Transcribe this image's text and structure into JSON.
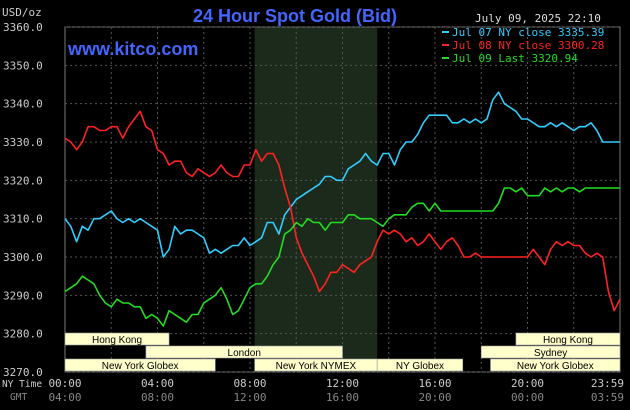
{
  "chart_data": {
    "type": "line",
    "title": "24 Hour Spot Gold (Bid)",
    "ylabel": "USD/oz",
    "ylim": [
      3270,
      3360
    ],
    "y_ticks": [
      "3270.0",
      "3280.0",
      "3290.0",
      "3300.0",
      "3310.0",
      "3320.0",
      "3330.0",
      "3340.0",
      "3350.0",
      "3360.0"
    ],
    "x_range_hours": [
      0,
      24
    ],
    "x_ticks_ny": [
      "00:00",
      "04:00",
      "08:00",
      "12:00",
      "16:00",
      "20:00",
      "23:59"
    ],
    "x_ticks_gmt": [
      "04:00",
      "08:00",
      "12:00",
      "16:00",
      "20:00",
      "00:00",
      "03:59"
    ],
    "x_row_labels": {
      "ny": "NY Time",
      "gmt": "GMT"
    },
    "grid": true,
    "legend_position": "top-right",
    "date_text": "July 09, 2025 22:10",
    "watermark": "www.kitco.com",
    "series": [
      {
        "name": "Jul 07 NY close 3335.39",
        "color": "#33ccff",
        "x": [
          0,
          0.25,
          0.5,
          0.75,
          1,
          1.25,
          1.5,
          1.75,
          2,
          2.25,
          2.5,
          2.75,
          3,
          3.25,
          3.5,
          3.75,
          4,
          4.25,
          4.5,
          4.75,
          5,
          5.25,
          5.5,
          5.75,
          6,
          6.25,
          6.5,
          6.75,
          7,
          7.25,
          7.5,
          7.75,
          8,
          8.25,
          8.5,
          8.75,
          9,
          9.25,
          9.5,
          9.75,
          10,
          10.25,
          10.5,
          10.75,
          11,
          11.25,
          11.5,
          11.75,
          12,
          12.25,
          12.5,
          12.75,
          13,
          13.25,
          13.5,
          13.75,
          14,
          14.25,
          14.5,
          14.75,
          15,
          15.25,
          15.5,
          15.75,
          16,
          16.25,
          16.5,
          16.75,
          17,
          17.25,
          17.5,
          17.75,
          18,
          18.25,
          18.5,
          18.75,
          19,
          19.25,
          19.5,
          19.75,
          20,
          20.25,
          20.5,
          20.75,
          21,
          21.25,
          21.5,
          21.75,
          22,
          22.25,
          22.5,
          22.75,
          23,
          23.25,
          23.5,
          23.75,
          24
        ],
        "values": [
          3310,
          3308,
          3304,
          3308,
          3307,
          3310,
          3310,
          3311,
          3312,
          3310,
          3309,
          3310,
          3309,
          3310,
          3309,
          3308,
          3307,
          3300,
          3302,
          3308,
          3306,
          3307,
          3307,
          3306,
          3305,
          3301,
          3302,
          3301,
          3302,
          3303,
          3303,
          3305,
          3303,
          3304,
          3305,
          3309,
          3309,
          3306,
          3311,
          3313,
          3315,
          3316,
          3317,
          3318,
          3319,
          3321,
          3321,
          3320,
          3320,
          3323,
          3324,
          3325,
          3327,
          3325,
          3324,
          3327,
          3327,
          3324,
          3328,
          3330,
          3330,
          3332,
          3335,
          3337,
          3337,
          3337,
          3337,
          3335,
          3335,
          3336,
          3335,
          3336,
          3335,
          3336,
          3341,
          3343,
          3340,
          3339,
          3338,
          3336,
          3336,
          3335,
          3334,
          3334,
          3335,
          3334,
          3335,
          3334,
          3333,
          3334,
          3334,
          3335,
          3333,
          3330,
          3330,
          3330,
          3330
        ]
      },
      {
        "name": "Jul 08 NY close 3300.28",
        "color": "#ff2222",
        "x": [
          0,
          0.25,
          0.5,
          0.75,
          1,
          1.25,
          1.5,
          1.75,
          2,
          2.25,
          2.5,
          2.75,
          3,
          3.25,
          3.5,
          3.75,
          4,
          4.25,
          4.5,
          4.75,
          5,
          5.25,
          5.5,
          5.75,
          6,
          6.25,
          6.5,
          6.75,
          7,
          7.25,
          7.5,
          7.75,
          8,
          8.25,
          8.5,
          8.75,
          9,
          9.25,
          9.5,
          9.75,
          10,
          10.25,
          10.5,
          10.75,
          11,
          11.25,
          11.5,
          11.75,
          12,
          12.25,
          12.5,
          12.75,
          13,
          13.25,
          13.5,
          13.75,
          14,
          14.25,
          14.5,
          14.75,
          15,
          15.25,
          15.5,
          15.75,
          16,
          16.25,
          16.5,
          16.75,
          17,
          17.25,
          17.5,
          17.75,
          18,
          18.25,
          18.5,
          18.75,
          19,
          19.25,
          19.5,
          19.75,
          20,
          20.25,
          20.5,
          20.75,
          21,
          21.25,
          21.5,
          21.75,
          22,
          22.25,
          22.5,
          22.75,
          23,
          23.25,
          23.5,
          23.75,
          24
        ],
        "values": [
          3331,
          3330,
          3328,
          3330,
          3334,
          3334,
          3333,
          3333,
          3334,
          3334,
          3331,
          3334,
          3336,
          3338,
          3334,
          3333,
          3328,
          3327,
          3324,
          3325,
          3325,
          3322,
          3321,
          3323,
          3322,
          3321,
          3322,
          3324,
          3322,
          3321,
          3321,
          3324,
          3324,
          3328,
          3325,
          3327,
          3327,
          3324,
          3318,
          3313,
          3305,
          3301,
          3298,
          3295,
          3291,
          3293,
          3296,
          3296,
          3298,
          3297,
          3296,
          3298,
          3299,
          3300,
          3304,
          3307,
          3306,
          3307,
          3306,
          3304,
          3305,
          3303,
          3304,
          3306,
          3304,
          3302,
          3304,
          3305,
          3303,
          3300,
          3300,
          3301,
          3300,
          3300,
          3300,
          3300,
          3300,
          3300,
          3300,
          3300,
          3300,
          3302,
          3300,
          3298,
          3302,
          3304,
          3303,
          3304,
          3303,
          3303,
          3301,
          3300,
          3301,
          3300,
          3291,
          3286,
          3289
        ]
      },
      {
        "name": "Jul 09 Last 3320.94",
        "color": "#22dd22",
        "x": [
          0,
          0.25,
          0.5,
          0.75,
          1,
          1.25,
          1.5,
          1.75,
          2,
          2.25,
          2.5,
          2.75,
          3,
          3.25,
          3.5,
          3.75,
          4,
          4.25,
          4.5,
          4.75,
          5,
          5.25,
          5.5,
          5.75,
          6,
          6.25,
          6.5,
          6.75,
          7,
          7.25,
          7.5,
          7.75,
          8,
          8.25,
          8.5,
          8.75,
          9,
          9.25,
          9.5,
          9.75,
          10,
          10.25,
          10.5,
          10.75,
          11,
          11.25,
          11.5,
          11.75,
          12,
          12.25,
          12.5,
          12.75,
          13,
          13.25,
          13.5,
          13.75,
          14,
          14.25,
          14.5,
          14.75,
          15,
          15.25,
          15.5,
          15.75,
          16,
          16.25,
          16.5,
          16.75,
          17,
          17.25,
          17.5,
          17.75,
          18,
          18.25,
          18.5,
          18.75,
          19,
          19.25,
          19.5,
          19.75,
          20,
          20.25,
          20.5,
          20.75,
          21,
          21.25,
          21.5,
          21.75,
          22,
          22.25,
          22.5,
          22.75,
          23,
          23.25,
          23.5,
          23.75,
          24
        ],
        "values": [
          3291,
          3292,
          3293,
          3295,
          3294,
          3293,
          3290,
          3288,
          3287,
          3289,
          3288,
          3288,
          3287,
          3287,
          3284,
          3285,
          3284,
          3282,
          3286,
          3285,
          3284,
          3283,
          3285,
          3285,
          3288,
          3289,
          3290,
          3292,
          3289,
          3285,
          3286,
          3289,
          3292,
          3293,
          3293,
          3295,
          3298,
          3300,
          3306,
          3307,
          3309,
          3308,
          3310,
          3309,
          3309,
          3307,
          3309,
          3309,
          3309,
          3311,
          3311,
          3310,
          3310,
          3310,
          3309,
          3308,
          3310,
          3311,
          3311,
          3311,
          3313,
          3314,
          3314,
          3312,
          3314,
          3312,
          3312,
          3312,
          3312,
          3312,
          3312,
          3312,
          3312,
          3312,
          3312,
          3314,
          3318,
          3318,
          3317,
          3318,
          3316,
          3316,
          3316,
          3318,
          3317,
          3318,
          3317,
          3318,
          3318,
          3317,
          3318,
          3318,
          3318,
          3318,
          3318,
          3318,
          3318
        ]
      }
    ]
  },
  "market_sessions": [
    {
      "name": "Hong Kong",
      "start": 0,
      "end": 4.5,
      "row": 0
    },
    {
      "name": "London",
      "start": 3.5,
      "end": 12,
      "row": 1
    },
    {
      "name": "New York Globex",
      "start": 0,
      "end": 6.5,
      "row": 2
    },
    {
      "name": "New York NYMEX",
      "start": 8.2,
      "end": 13.5,
      "row": 2
    },
    {
      "name": "NY Globex",
      "start": 13.5,
      "end": 17.2,
      "row": 2
    },
    {
      "name": "Hong Kong",
      "start": 19.5,
      "end": 24,
      "row": 0
    },
    {
      "name": "Sydney",
      "start": 18,
      "end": 24,
      "row": 1
    },
    {
      "name": "New York Globex",
      "start": 18.4,
      "end": 24,
      "row": 2
    }
  ],
  "colors": {
    "background": "#000000",
    "grid": "#555555",
    "axis_text": "#cccccc",
    "title": "#4466ff",
    "session_fill": "#ffffcc",
    "session_highlight": "#1c2a1c"
  }
}
